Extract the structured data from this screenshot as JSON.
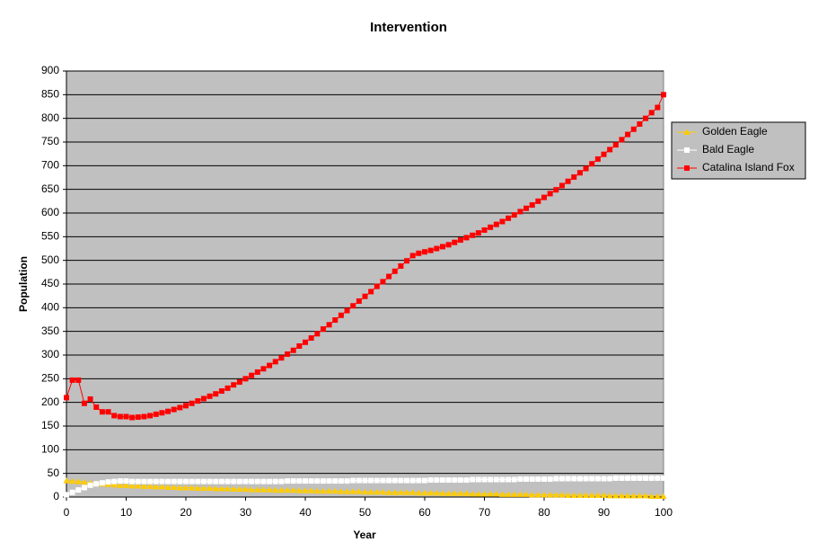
{
  "chart_data": {
    "type": "line",
    "title": "Intervention",
    "x_label": "Year",
    "y_label": "Population",
    "x": [
      0,
      1,
      2,
      3,
      4,
      5,
      6,
      7,
      8,
      9,
      10,
      11,
      12,
      13,
      14,
      15,
      16,
      17,
      18,
      19,
      20,
      21,
      22,
      23,
      24,
      25,
      26,
      27,
      28,
      29,
      30,
      31,
      32,
      33,
      34,
      35,
      36,
      37,
      38,
      39,
      40,
      41,
      42,
      43,
      44,
      45,
      46,
      47,
      48,
      49,
      50,
      51,
      52,
      53,
      54,
      55,
      56,
      57,
      58,
      59,
      60,
      61,
      62,
      63,
      64,
      65,
      66,
      67,
      68,
      69,
      70,
      71,
      72,
      73,
      74,
      75,
      76,
      77,
      78,
      79,
      80,
      81,
      82,
      83,
      84,
      85,
      86,
      87,
      88,
      89,
      90,
      91,
      92,
      93,
      94,
      95,
      96,
      97,
      98,
      99,
      100
    ],
    "series": [
      {
        "name": "Golden Eagle",
        "color": "#ffcc00",
        "values": [
          35,
          34,
          33,
          32,
          30,
          29,
          28,
          27,
          26,
          25,
          25,
          24,
          24,
          23,
          23,
          22,
          22,
          21,
          21,
          20,
          20,
          20,
          19,
          19,
          19,
          18,
          18,
          18,
          17,
          17,
          17,
          16,
          16,
          16,
          16,
          15,
          15,
          15,
          15,
          14,
          14,
          14,
          13,
          13,
          13,
          13,
          12,
          12,
          12,
          12,
          11,
          11,
          11,
          11,
          10,
          10,
          10,
          10,
          10,
          9,
          9,
          9,
          9,
          8,
          8,
          8,
          8,
          8,
          7,
          7,
          7,
          7,
          7,
          6,
          6,
          6,
          6,
          6,
          5,
          5,
          5,
          5,
          5,
          5,
          4,
          4,
          4,
          4,
          4,
          4,
          4,
          3,
          3,
          3,
          3,
          3,
          3,
          3,
          2,
          2,
          2
        ]
      },
      {
        "name": "Bald Eagle",
        "color": "#ffffff",
        "values": [
          5,
          10,
          15,
          20,
          25,
          28,
          30,
          32,
          33,
          34,
          34,
          33,
          33,
          33,
          33,
          33,
          33,
          33,
          33,
          33,
          33,
          33,
          33,
          33,
          33,
          33,
          33,
          33,
          33,
          33,
          33,
          33,
          33,
          33,
          33,
          33,
          33,
          34,
          34,
          34,
          34,
          34,
          34,
          34,
          34,
          34,
          34,
          34,
          35,
          35,
          35,
          35,
          35,
          35,
          35,
          35,
          35,
          35,
          35,
          35,
          35,
          36,
          36,
          36,
          36,
          36,
          36,
          36,
          37,
          37,
          37,
          37,
          37,
          37,
          37,
          37,
          38,
          38,
          38,
          38,
          38,
          38,
          39,
          39,
          39,
          39,
          39,
          39,
          39,
          39,
          39,
          39,
          40,
          40,
          40,
          40,
          40,
          40,
          40,
          40,
          40
        ]
      },
      {
        "name": "Catalina Island Fox",
        "color": "#ff0000",
        "values": [
          210,
          247,
          247,
          198,
          207,
          190,
          180,
          180,
          172,
          170,
          170,
          168,
          169,
          170,
          172,
          175,
          178,
          181,
          185,
          189,
          193,
          198,
          203,
          208,
          213,
          218,
          224,
          230,
          237,
          243,
          250,
          257,
          264,
          271,
          278,
          286,
          294,
          302,
          310,
          319,
          327,
          336,
          345,
          355,
          364,
          374,
          384,
          394,
          404,
          414,
          424,
          434,
          445,
          455,
          466,
          477,
          488,
          499,
          510,
          515,
          518,
          521,
          525,
          529,
          533,
          538,
          543,
          548,
          553,
          558,
          564,
          570,
          576,
          582,
          589,
          596,
          603,
          610,
          617,
          625,
          633,
          641,
          649,
          658,
          667,
          676,
          685,
          694,
          704,
          714,
          724,
          734,
          744,
          755,
          766,
          777,
          788,
          800,
          812,
          823,
          850
        ]
      }
    ],
    "xlim": [
      0,
      100
    ],
    "xticks": [
      0,
      10,
      20,
      30,
      40,
      50,
      60,
      70,
      80,
      90,
      100
    ],
    "ylim": [
      0,
      900
    ],
    "yticks": [
      0,
      50,
      100,
      150,
      200,
      250,
      300,
      350,
      400,
      450,
      500,
      550,
      600,
      650,
      700,
      750,
      800,
      850,
      900
    ],
    "grid": true,
    "plot_background": "#c0c0c0",
    "legend": "right"
  }
}
